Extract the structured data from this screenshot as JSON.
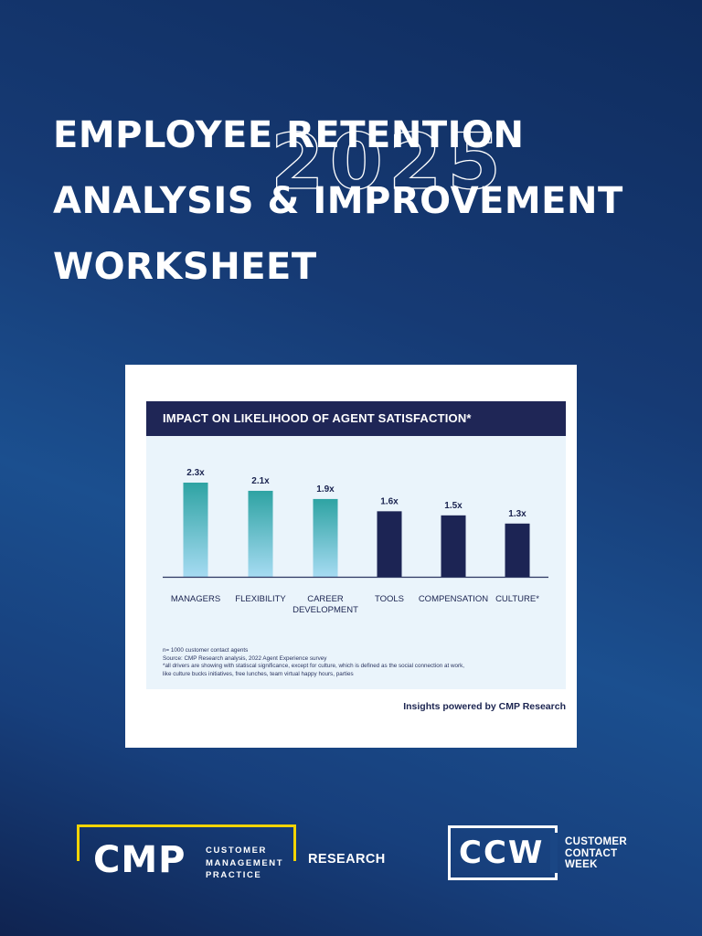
{
  "title": {
    "lines": [
      "EMPLOYEE RETENTION",
      "ANALYSIS & IMPROVEMENT",
      "WORKSHEET"
    ],
    "year": "2025"
  },
  "card": {
    "header": "IMPACT ON LIKELIHOOD OF AGENT SATISFACTION*",
    "footnotes": [
      "n= 1000 customer contact agents",
      "Source: CMP Research analysis, 2022 Agent Experience survey",
      "*all drivers are showing with statiscal significance, except for culture, which is defined as the social connection at work,",
      "like culture bucks initiatives, free lunches, team virtual happy hours, parties"
    ],
    "powered_by": "Insights powered by CMP Research"
  },
  "chart_data": {
    "type": "bar",
    "title": "IMPACT ON LIKELIHOOD OF AGENT SATISFACTION*",
    "categories": [
      [
        "MANAGERS"
      ],
      [
        "FLEXIBILITY"
      ],
      [
        "CAREER",
        "DEVELOPMENT"
      ],
      [
        "TOOLS"
      ],
      [
        "COMPENSATION"
      ],
      [
        "CULTURE*"
      ]
    ],
    "values": [
      2.3,
      2.1,
      1.9,
      1.6,
      1.5,
      1.3
    ],
    "data_labels": [
      "2.3x",
      "2.1x",
      "1.9x",
      "1.6x",
      "1.5x",
      "1.3x"
    ],
    "bar_styles": [
      "teal-gradient",
      "teal-gradient",
      "teal-gradient",
      "navy",
      "navy",
      "navy"
    ],
    "colors": {
      "teal_top": "#2ea3a3",
      "teal_bottom": "#a6dbf2",
      "navy": "#1c2454",
      "baseline": "#2b3560"
    },
    "ylim": [
      0,
      2.3
    ],
    "xlabel": "",
    "ylabel": "",
    "grid": false,
    "legend": "none"
  },
  "logos": {
    "cmp": {
      "word": "CMP",
      "sub": [
        "CUSTOMER",
        "MANAGEMENT",
        "PRACTICE"
      ],
      "research": "RESEARCH"
    },
    "ccw": {
      "word": "CCW",
      "sub": [
        "CUSTOMER",
        "CONTACT",
        "WEEK"
      ]
    }
  },
  "colors": {
    "accent_yellow": "#f2d400",
    "header_navy": "#1f2656",
    "panel_bg": "#eaf4fb"
  }
}
